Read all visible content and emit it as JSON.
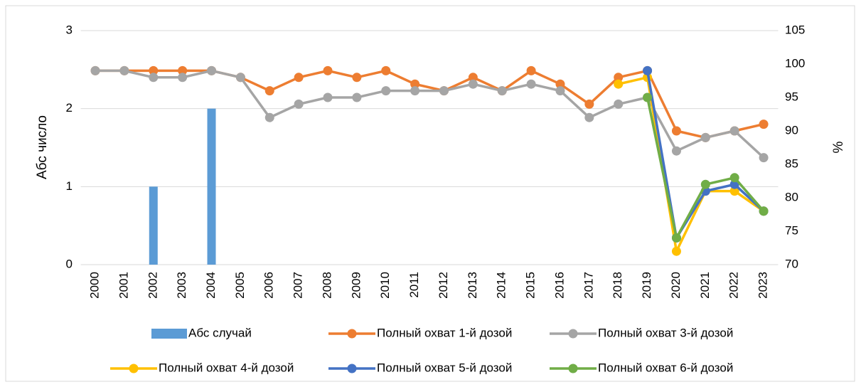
{
  "chart_data": {
    "type": "combo",
    "y_label": "Абс число",
    "y2_label": "%",
    "categories": [
      "2000",
      "2001",
      "2002",
      "2003",
      "2004",
      "2005",
      "2006",
      "2007",
      "2008",
      "2009",
      "2010",
      "2011",
      "2012",
      "2013",
      "2014",
      "2015",
      "2016",
      "2017",
      "2018",
      "2019",
      "2020",
      "2021",
      "2022",
      "2023"
    ],
    "ylim": [
      0,
      3
    ],
    "yticks": [
      0,
      1,
      2,
      3
    ],
    "y2lim": [
      70,
      105
    ],
    "y2ticks": [
      70,
      75,
      80,
      85,
      90,
      95,
      100,
      105
    ],
    "grid": true,
    "series": [
      {
        "name": "Абс случай",
        "type": "bar",
        "color": "#5b9bd5",
        "values": [
          0,
          0,
          1,
          0,
          2,
          0,
          0,
          0,
          0,
          0,
          0,
          0,
          0,
          0,
          0,
          0,
          0,
          0,
          0,
          0,
          0,
          0,
          0,
          0
        ]
      },
      {
        "name": "Полный охват 1-й дозой",
        "type": "line",
        "axis": "y2",
        "color": "#ed7d31",
        "values": [
          99,
          99,
          99,
          99,
          99,
          98,
          96,
          98,
          99,
          98,
          99,
          97,
          96,
          98,
          96,
          99,
          97,
          94,
          98,
          99,
          90,
          89,
          90,
          91
        ]
      },
      {
        "name": "Полный охват 3-й дозой",
        "type": "line",
        "axis": "y2",
        "color": "#a5a5a5",
        "values": [
          99,
          99,
          98,
          98,
          99,
          98,
          92,
          94,
          95,
          95,
          96,
          96,
          96,
          97,
          96,
          97,
          96,
          92,
          94,
          95,
          87,
          89,
          90,
          86
        ]
      },
      {
        "name": "Полный охват 4-й дозой",
        "type": "line",
        "axis": "y2",
        "color": "#ffc000",
        "values": [
          null,
          null,
          null,
          null,
          null,
          null,
          null,
          null,
          null,
          null,
          null,
          null,
          null,
          null,
          null,
          null,
          null,
          null,
          97,
          98,
          72,
          81,
          81,
          78
        ]
      },
      {
        "name": "Полный охват 5-й дозой",
        "type": "line",
        "axis": "y2",
        "color": "#4472c4",
        "values": [
          null,
          null,
          null,
          null,
          null,
          null,
          null,
          null,
          null,
          null,
          null,
          null,
          null,
          null,
          null,
          null,
          null,
          null,
          null,
          99,
          74,
          81,
          82,
          78
        ]
      },
      {
        "name": "Полный охват 6-й дозой",
        "type": "line",
        "axis": "y2",
        "color": "#70ad47",
        "values": [
          null,
          null,
          null,
          null,
          null,
          null,
          null,
          null,
          null,
          null,
          null,
          null,
          null,
          null,
          null,
          null,
          null,
          null,
          null,
          95,
          74,
          82,
          83,
          78
        ]
      }
    ]
  }
}
